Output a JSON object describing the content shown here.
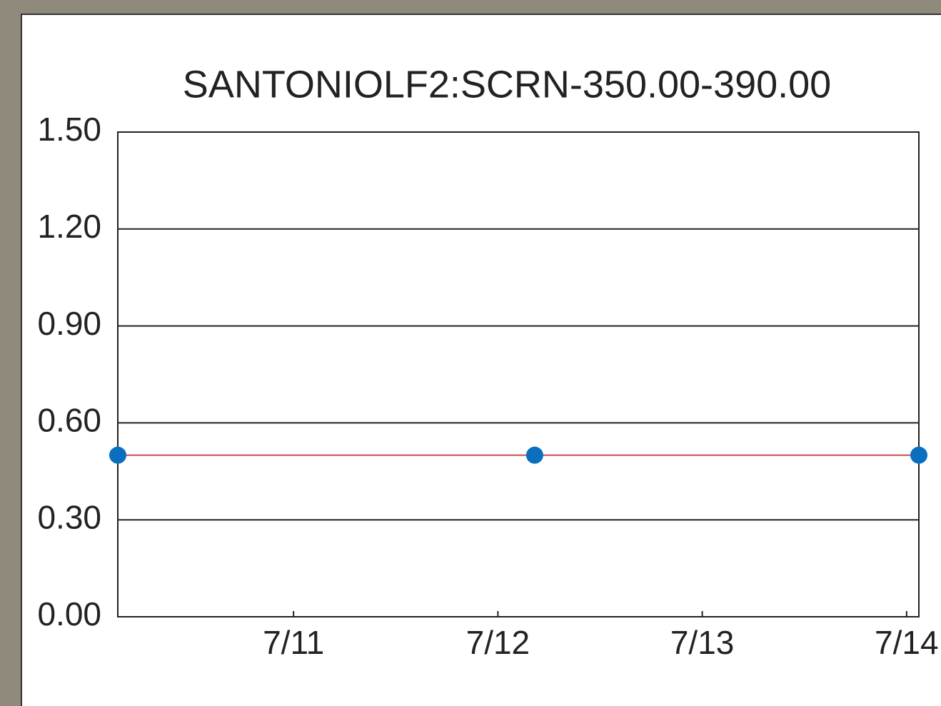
{
  "chart_data": {
    "type": "line",
    "title": "SANTONIOLF2:SCRN-350.00-390.00",
    "x": [
      10.14,
      12.18,
      14.06
    ],
    "series": [
      {
        "name": null,
        "color": "#c0504d",
        "marker_color": "#0a6fbf",
        "values": [
          0.5,
          0.5,
          0.5
        ]
      }
    ],
    "xlim": [
      10.14,
      14.06
    ],
    "xticks": [
      {
        "value": 11,
        "label": "7/11"
      },
      {
        "value": 12,
        "label": "7/12"
      },
      {
        "value": 13,
        "label": "7/13"
      },
      {
        "value": 14,
        "label": "7/14"
      }
    ],
    "ylim": [
      0,
      1.5
    ],
    "yticks": [
      {
        "value": 0,
        "label": "0.00"
      },
      {
        "value": 0.3,
        "label": "0.30"
      },
      {
        "value": 0.6,
        "label": "0.60"
      },
      {
        "value": 0.9,
        "label": "0.90"
      },
      {
        "value": 1.2,
        "label": "1.20"
      },
      {
        "value": 1.5,
        "label": "1.50"
      }
    ],
    "grid": true
  }
}
